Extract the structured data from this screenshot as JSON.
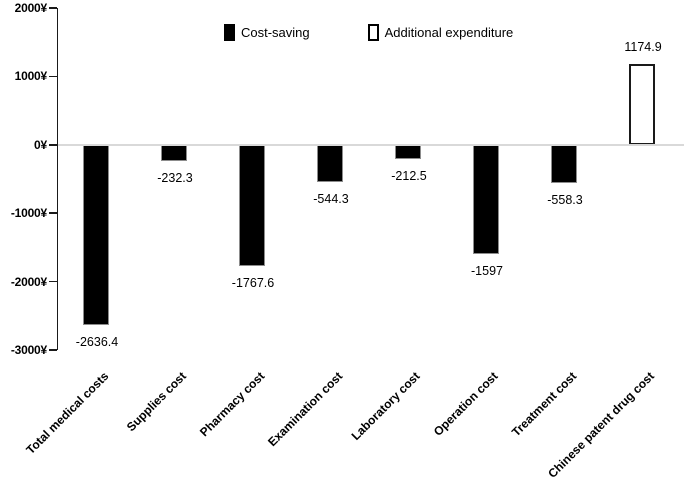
{
  "chart_data": {
    "type": "bar",
    "title": "",
    "xlabel": "",
    "ylabel": "",
    "categories": [
      "Total medical costs",
      "Supplies cost",
      "Pharmacy cost",
      "Examination cost",
      "Laboratory cost",
      "Operation cost",
      "Treatment cost",
      "Chinese patent drug cost"
    ],
    "values": [
      -2636.4,
      -232.3,
      -1767.6,
      -544.3,
      -212.5,
      -1597,
      -558.3,
      1174.9
    ],
    "value_labels": [
      "-2636.4",
      "-232.3",
      "-1767.6",
      "-544.3",
      "-212.5",
      "-1597",
      "-558.3",
      "1174.9"
    ],
    "bar_styles": [
      "filled",
      "filled",
      "filled",
      "filled",
      "filled",
      "filled",
      "filled",
      "outline"
    ],
    "ylim": [
      -3000,
      2000
    ],
    "y_ticks": [
      {
        "value": 2000,
        "label": "2000¥"
      },
      {
        "value": 1000,
        "label": "1000¥"
      },
      {
        "value": 0,
        "label": "0¥"
      },
      {
        "value": -1000,
        "label": "-1000¥"
      },
      {
        "value": -2000,
        "label": "-2000¥"
      },
      {
        "value": -3000,
        "label": "-3000¥"
      }
    ],
    "legend": [
      {
        "label": "Cost-saving",
        "style": "filled"
      },
      {
        "label": "Additional expenditure",
        "style": "outline"
      }
    ],
    "legend_position": "top-center",
    "grid": "zero-line-only",
    "colors": {
      "bar_fill": "#000000",
      "bar_outline_fill": "#ffffff",
      "bar_border": "#1a1a1a",
      "zero_line": "#d9d9d9",
      "axis": "#1a1a1a",
      "text": "#000000",
      "background": "#ffffff"
    }
  }
}
